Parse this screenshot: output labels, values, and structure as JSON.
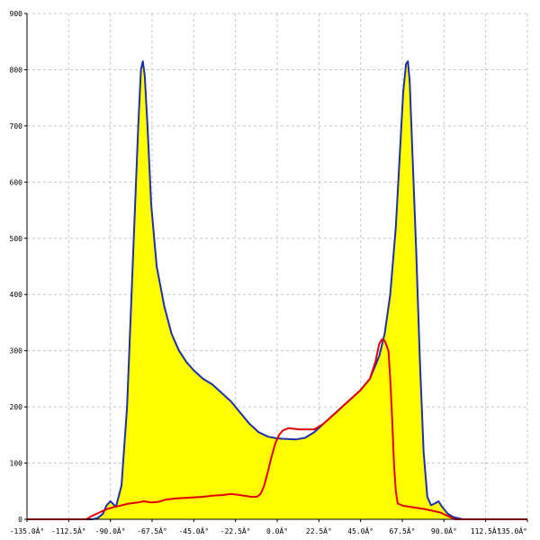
{
  "chart_data": {
    "type": "area",
    "xlim": [
      -135,
      135
    ],
    "ylim": [
      0,
      900
    ],
    "grid": true,
    "x_ticks": [
      -135,
      -112.5,
      -90,
      -67.5,
      -45,
      -22.5,
      0,
      22.5,
      45,
      67.5,
      90,
      112.5,
      135
    ],
    "x_tick_labels": [
      "-135.0Â°",
      "-112.5Â°",
      "-90.0Â°",
      "-67.5Â°",
      "-45.0Â°",
      "-22.5Â°",
      "0.0Â°",
      "22.5Â°",
      "45.0Â°",
      "67.5Â°",
      "90.0Â°",
      "112.5Â°",
      "135.0Â°"
    ],
    "y_ticks": [
      0,
      100,
      200,
      300,
      400,
      500,
      600,
      700,
      800,
      900
    ],
    "y_tick_labels": [
      "0",
      "100",
      "200",
      "300",
      "400",
      "500",
      "600",
      "700",
      "800",
      "900"
    ],
    "series": [
      {
        "color": "#1f2fa8",
        "fill": "#ffff00",
        "points": [
          [
            -135,
            0
          ],
          [
            -100,
            0
          ],
          [
            -97,
            2
          ],
          [
            -94,
            10
          ],
          [
            -92,
            25
          ],
          [
            -90,
            32
          ],
          [
            -88.5,
            27
          ],
          [
            -87,
            22
          ],
          [
            -84,
            60
          ],
          [
            -81,
            200
          ],
          [
            -78,
            450
          ],
          [
            -75,
            700
          ],
          [
            -73.5,
            800
          ],
          [
            -72.5,
            815
          ],
          [
            -71.5,
            790
          ],
          [
            -70,
            700
          ],
          [
            -68,
            560
          ],
          [
            -65,
            450
          ],
          [
            -61,
            380
          ],
          [
            -57,
            330
          ],
          [
            -53,
            300
          ],
          [
            -49,
            280
          ],
          [
            -45,
            265
          ],
          [
            -40,
            250
          ],
          [
            -35,
            240
          ],
          [
            -30,
            225
          ],
          [
            -25,
            210
          ],
          [
            -20,
            190
          ],
          [
            -15,
            170
          ],
          [
            -10,
            155
          ],
          [
            -5,
            147
          ],
          [
            0,
            144
          ],
          [
            5,
            143
          ],
          [
            10,
            142
          ],
          [
            15,
            145
          ],
          [
            20,
            155
          ],
          [
            25,
            170
          ],
          [
            30,
            185
          ],
          [
            35,
            200
          ],
          [
            40,
            215
          ],
          [
            45,
            230
          ],
          [
            50,
            250
          ],
          [
            55,
            290
          ],
          [
            58,
            330
          ],
          [
            61,
            400
          ],
          [
            64,
            520
          ],
          [
            66,
            640
          ],
          [
            68,
            760
          ],
          [
            69.5,
            810
          ],
          [
            70.5,
            815
          ],
          [
            71.5,
            780
          ],
          [
            73,
            650
          ],
          [
            75,
            480
          ],
          [
            77,
            280
          ],
          [
            79,
            120
          ],
          [
            81,
            40
          ],
          [
            83,
            25
          ],
          [
            85,
            28
          ],
          [
            87,
            32
          ],
          [
            89,
            22
          ],
          [
            92,
            10
          ],
          [
            95,
            4
          ],
          [
            100,
            0
          ],
          [
            135,
            0
          ]
        ]
      },
      {
        "color": "#e00000",
        "points": [
          [
            -135,
            0
          ],
          [
            -103,
            0
          ],
          [
            -100,
            6
          ],
          [
            -96,
            12
          ],
          [
            -92,
            18
          ],
          [
            -88,
            22
          ],
          [
            -85,
            24
          ],
          [
            -80,
            28
          ],
          [
            -75,
            30
          ],
          [
            -72,
            32
          ],
          [
            -68,
            30
          ],
          [
            -64,
            31
          ],
          [
            -60,
            35
          ],
          [
            -55,
            37
          ],
          [
            -50,
            38
          ],
          [
            -45,
            39
          ],
          [
            -40,
            40
          ],
          [
            -35,
            42
          ],
          [
            -30,
            43
          ],
          [
            -25,
            45
          ],
          [
            -22,
            44
          ],
          [
            -18,
            42
          ],
          [
            -14,
            40
          ],
          [
            -11,
            40
          ],
          [
            -9,
            45
          ],
          [
            -7,
            60
          ],
          [
            -5,
            85
          ],
          [
            -3,
            112
          ],
          [
            -1,
            135
          ],
          [
            1,
            150
          ],
          [
            3,
            158
          ],
          [
            6,
            162
          ],
          [
            12,
            160
          ],
          [
            20,
            160
          ],
          [
            25,
            170
          ],
          [
            30,
            185
          ],
          [
            35,
            200
          ],
          [
            40,
            215
          ],
          [
            45,
            230
          ],
          [
            50,
            250
          ],
          [
            53,
            280
          ],
          [
            55,
            312
          ],
          [
            56.5,
            320
          ],
          [
            58,
            318
          ],
          [
            60,
            300
          ],
          [
            61,
            250
          ],
          [
            62,
            180
          ],
          [
            63,
            100
          ],
          [
            64,
            50
          ],
          [
            65,
            28
          ],
          [
            68,
            24
          ],
          [
            72,
            22
          ],
          [
            76,
            20
          ],
          [
            80,
            18
          ],
          [
            84,
            15
          ],
          [
            88,
            12
          ],
          [
            92,
            6
          ],
          [
            96,
            0
          ],
          [
            135,
            0
          ]
        ]
      }
    ]
  }
}
